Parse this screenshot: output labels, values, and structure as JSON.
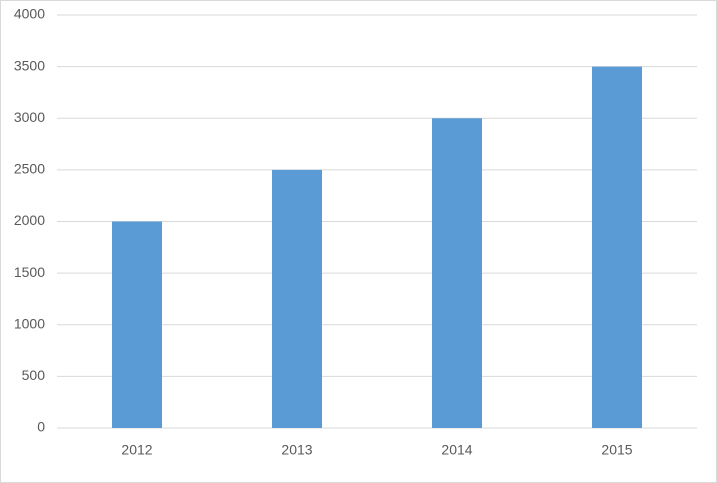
{
  "chart_data": {
    "type": "bar",
    "categories": [
      "2012",
      "2013",
      "2014",
      "2015"
    ],
    "values": [
      2000,
      2500,
      3000,
      3500
    ],
    "color": "#5b9bd5",
    "ylim": [
      0,
      4000
    ],
    "yticks": [
      0,
      500,
      1000,
      1500,
      2000,
      2500,
      3000,
      3500,
      4000
    ],
    "grid": true
  }
}
